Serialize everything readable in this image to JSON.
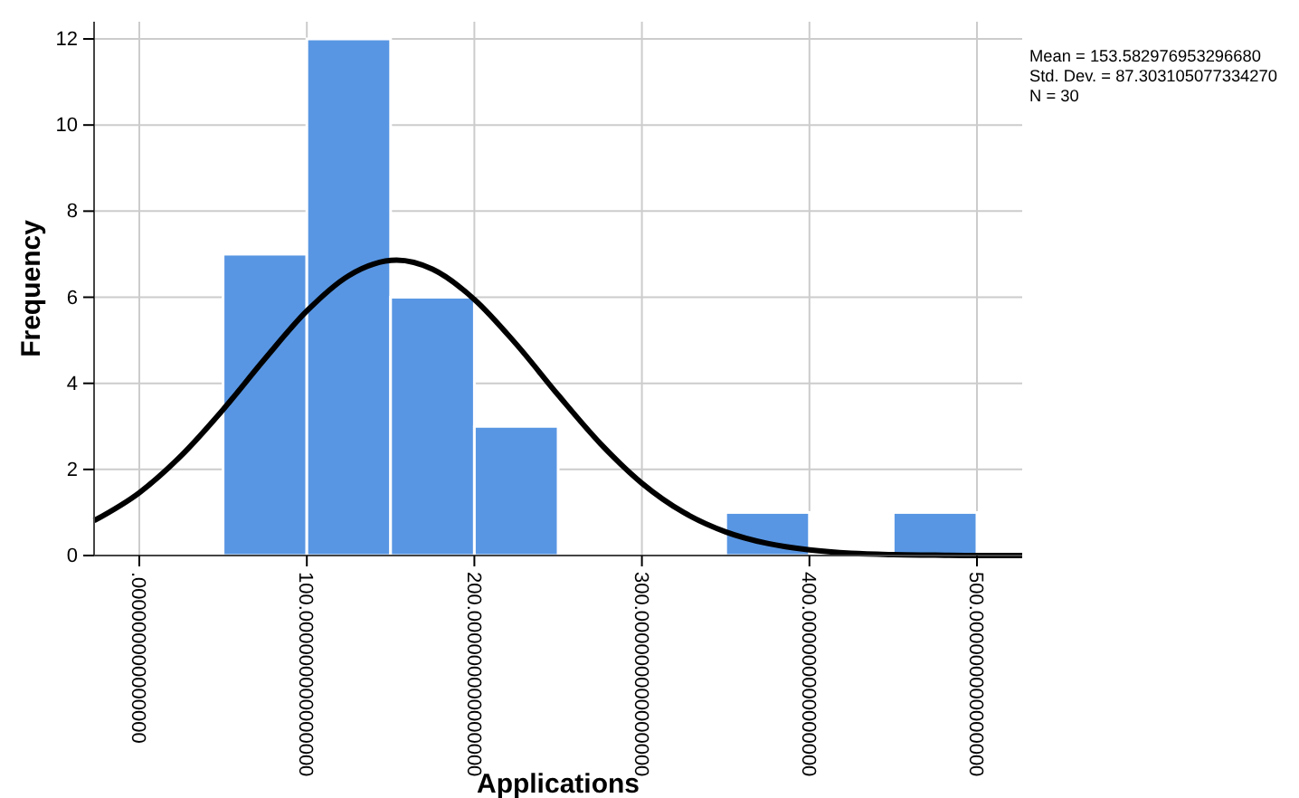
{
  "chart_data": {
    "type": "histogram",
    "xlabel": "Applications",
    "ylabel": "Frequency",
    "bins": [
      50,
      100,
      150,
      200,
      250,
      300,
      350,
      400,
      450,
      500
    ],
    "values": [
      7,
      12,
      6,
      3,
      0,
      0,
      1,
      0,
      1
    ],
    "color": "#5896e3",
    "series": [
      {
        "type": "line",
        "color": "#000000",
        "x": [
          -27,
          0,
          25,
          50,
          75,
          100,
          125,
          153.58,
          175,
          200,
          225,
          250,
          275,
          300,
          325,
          350,
          375,
          400,
          425,
          450,
          475,
          500,
          527
        ],
        "values": [
          0.81,
          1.46,
          2.32,
          3.39,
          4.57,
          5.68,
          6.5,
          6.86,
          6.65,
          5.95,
          4.91,
          3.73,
          2.61,
          1.68,
          1.0,
          0.55,
          0.28,
          0.13,
          0.05,
          0.02,
          0.01,
          0.0,
          0.0
        ]
      }
    ],
    "marker": "none",
    "line_style": "solid",
    "xlim": [
      -27,
      527
    ],
    "xticks": [
      {
        "value": 0,
        "label": ".000000000000000"
      },
      {
        "value": 100,
        "label": "100.000000000000000"
      },
      {
        "value": 200,
        "label": "200.000000000000000"
      },
      {
        "value": 300,
        "label": "300.000000000000000"
      },
      {
        "value": 400,
        "label": "400.000000000000000"
      },
      {
        "value": 500,
        "label": "500.000000000000000"
      }
    ],
    "ylim": [
      0,
      12.4
    ],
    "yticks": [
      0,
      2,
      4,
      6,
      8,
      10,
      12
    ],
    "grid": true,
    "annotations": [
      "Mean = 153.582976953296680",
      "Std. Dev. = 87.303105077334270",
      "N = 30"
    ]
  }
}
